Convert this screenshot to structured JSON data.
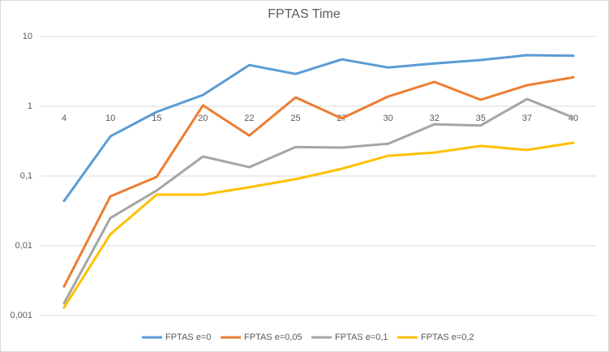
{
  "chart_data": {
    "type": "line",
    "title": "FPTAS Time",
    "categories": [
      "4",
      "10",
      "15",
      "20",
      "22",
      "25",
      "27",
      "30",
      "32",
      "35",
      "37",
      "40"
    ],
    "log_scale": true,
    "grid": true,
    "legend": "bottom",
    "ylim": [
      0.001,
      10
    ],
    "yticks": [
      {
        "value": 0.001,
        "label": "0,001"
      },
      {
        "value": 0.01,
        "label": "0,01"
      },
      {
        "value": 0.1,
        "label": "0,1"
      },
      1,
      10
    ],
    "series": [
      {
        "name": "FPTAS e=0",
        "color": "#5b9bd5",
        "values": [
          0.044,
          0.37,
          0.83,
          1.45,
          3.9,
          2.9,
          4.7,
          3.6,
          4.1,
          4.6,
          5.4,
          5.3
        ]
      },
      {
        "name": "FPTAS e=0,05",
        "color": "#ed7d31",
        "values": [
          0.0026,
          0.051,
          0.097,
          1.03,
          0.38,
          1.34,
          0.67,
          1.38,
          2.23,
          1.24,
          2.0,
          2.6
        ]
      },
      {
        "name": "FPTAS e=0,1",
        "color": "#a5a5a5",
        "values": [
          0.0015,
          0.025,
          0.062,
          0.19,
          0.134,
          0.26,
          0.255,
          0.29,
          0.55,
          0.53,
          1.27,
          0.69
        ]
      },
      {
        "name": "FPTAS e=0,2",
        "color": "#ffc000",
        "values": [
          0.0013,
          0.0146,
          0.054,
          0.054,
          0.069,
          0.09,
          0.127,
          0.195,
          0.217,
          0.27,
          0.236,
          0.3
        ]
      }
    ]
  }
}
